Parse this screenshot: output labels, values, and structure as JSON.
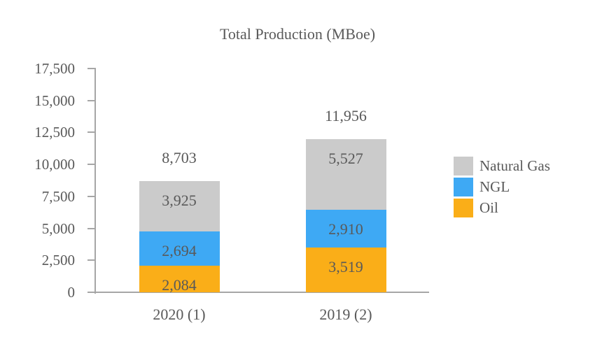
{
  "chart_data": {
    "type": "bar",
    "stacked": true,
    "title": "Total Production (MBoe)",
    "categories": [
      "2020 (1)",
      "2019 (2)"
    ],
    "series": [
      {
        "name": "Oil",
        "color": "#FAAE18",
        "values": [
          2084,
          3519
        ],
        "labels": [
          "2,084",
          "3,519"
        ]
      },
      {
        "name": "NGL",
        "color": "#3EA9F4",
        "values": [
          2694,
          2910
        ],
        "labels": [
          "2,694",
          "2,910"
        ]
      },
      {
        "name": "Natural Gas",
        "color": "#CBCBCB",
        "values": [
          3925,
          5527
        ],
        "labels": [
          "3,925",
          "5,527"
        ]
      }
    ],
    "totals": [
      8703,
      11956
    ],
    "total_labels": [
      "8,703",
      "11,956"
    ],
    "ylim": [
      0,
      17500
    ],
    "yticks": [
      0,
      2500,
      5000,
      7500,
      10000,
      12500,
      15000,
      17500
    ],
    "ytick_labels": [
      "0",
      "2,500",
      "5,000",
      "7,500",
      "10,000",
      "12,500",
      "15,000",
      "17,500"
    ],
    "legend": [
      {
        "label": "Natural Gas",
        "color": "#CBCBCB"
      },
      {
        "label": "NGL",
        "color": "#3EA9F4"
      },
      {
        "label": "Oil",
        "color": "#FAAE18"
      }
    ],
    "legend_position": "right",
    "grid": false,
    "axis_color": "#A6A6A6",
    "text_color": "#595959",
    "background": "#FFFFFF"
  }
}
